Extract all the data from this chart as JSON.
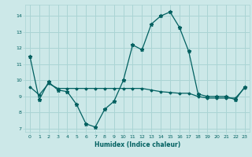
{
  "xlabel": "Humidex (Indice chaleur)",
  "background_color": "#cce8e8",
  "grid_color": "#aad4d4",
  "line_color": "#006060",
  "xlim": [
    -0.5,
    23.5
  ],
  "ylim": [
    6.8,
    14.7
  ],
  "yticks": [
    7,
    8,
    9,
    10,
    11,
    12,
    13,
    14
  ],
  "xticks": [
    0,
    1,
    2,
    3,
    4,
    5,
    6,
    7,
    8,
    9,
    10,
    11,
    12,
    13,
    14,
    15,
    16,
    17,
    18,
    19,
    20,
    21,
    22,
    23
  ],
  "line1_x": [
    0,
    1,
    2,
    3,
    4,
    5,
    6,
    7,
    8,
    9,
    10,
    11,
    12,
    13,
    14,
    15,
    16,
    17,
    18,
    19,
    20,
    21,
    22,
    23
  ],
  "line1_y": [
    11.5,
    8.8,
    9.9,
    9.4,
    9.3,
    8.5,
    7.3,
    7.1,
    8.2,
    8.7,
    10.0,
    12.2,
    11.9,
    13.5,
    14.0,
    14.25,
    13.3,
    11.8,
    9.15,
    9.0,
    9.0,
    9.0,
    8.8,
    9.6
  ],
  "line2_x": [
    0,
    1,
    2,
    3,
    4,
    5,
    6,
    7,
    8,
    9,
    10,
    11,
    12,
    13,
    14,
    15,
    16,
    17,
    18,
    19,
    20,
    21,
    22,
    23
  ],
  "line2_y": [
    9.6,
    9.1,
    9.8,
    9.5,
    9.5,
    9.5,
    9.5,
    9.5,
    9.5,
    9.5,
    9.5,
    9.5,
    9.5,
    9.4,
    9.3,
    9.25,
    9.2,
    9.2,
    9.0,
    8.9,
    8.9,
    8.9,
    8.9,
    9.55
  ]
}
